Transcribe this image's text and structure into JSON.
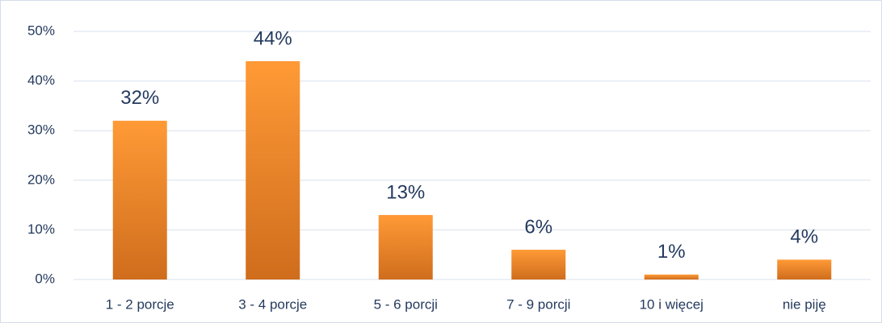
{
  "chart_data": {
    "type": "bar",
    "categories": [
      "1 - 2 porcje",
      "3 - 4 porcje",
      "5 - 6 porcji",
      "7 - 9 porcji",
      "10 i więcej",
      "nie piję"
    ],
    "values": [
      32,
      44,
      13,
      6,
      1,
      4
    ],
    "value_labels": [
      "32%",
      "44%",
      "13%",
      "6%",
      "1%",
      "4%"
    ],
    "color": "#f38b2a",
    "ylim": [
      0,
      50
    ],
    "yticks": [
      {
        "value": 0,
        "label": "0%"
      },
      {
        "value": 10,
        "label": "10%"
      },
      {
        "value": 20,
        "label": "20%"
      },
      {
        "value": 30,
        "label": "30%"
      },
      {
        "value": 40,
        "label": "40%"
      },
      {
        "value": 50,
        "label": "50%"
      }
    ],
    "grid": true
  }
}
